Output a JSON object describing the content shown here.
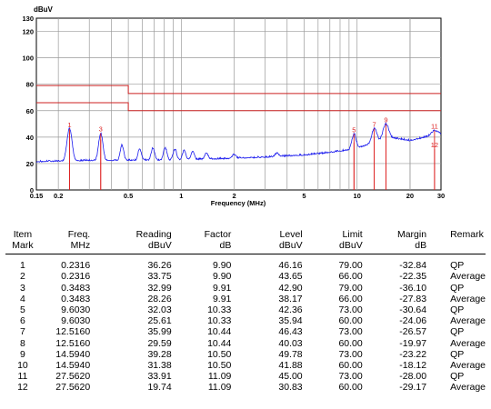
{
  "chart_data": {
    "type": "line",
    "yunit": "dBuV",
    "xlabel": "Frequency (MHz)",
    "xscale": "log",
    "xlim": [
      0.15,
      30
    ],
    "ylim": [
      0,
      130
    ],
    "yticks": [
      0,
      20,
      40,
      60,
      80,
      100,
      120,
      130
    ],
    "xticks": [
      {
        "v": 0.15,
        "label": "0.15"
      },
      {
        "v": 0.2,
        "label": "0.2"
      },
      {
        "v": 0.5,
        "label": "0.5"
      },
      {
        "v": 1,
        "label": "1"
      },
      {
        "v": 2,
        "label": "2"
      },
      {
        "v": 5,
        "label": "5"
      },
      {
        "v": 10,
        "label": "10"
      },
      {
        "v": 20,
        "label": "20"
      },
      {
        "v": 30,
        "label": "30"
      }
    ],
    "grid": true,
    "limit_lines": [
      {
        "points": [
          [
            0.15,
            79
          ],
          [
            0.5,
            79
          ],
          [
            0.5,
            73
          ],
          [
            30,
            73
          ]
        ],
        "color": "#cc2222"
      },
      {
        "points": [
          [
            0.15,
            66
          ],
          [
            0.5,
            66
          ],
          [
            0.5,
            60
          ],
          [
            30,
            60
          ]
        ],
        "color": "#cc2222"
      }
    ],
    "trace_color": "#1a1aee",
    "marker_color": "#dd2222",
    "markers": [
      {
        "label": "1",
        "x": 0.2316,
        "y": 46.16
      },
      {
        "label": "2",
        "x": 0.2316,
        "y": 43.65
      },
      {
        "label": "3",
        "x": 0.3483,
        "y": 42.9
      },
      {
        "label": "4",
        "x": 0.3483,
        "y": 38.17
      },
      {
        "label": "5",
        "x": 9.603,
        "y": 42.36
      },
      {
        "label": "6",
        "x": 9.603,
        "y": 35.94
      },
      {
        "label": "7",
        "x": 12.516,
        "y": 46.43
      },
      {
        "label": "8",
        "x": 12.516,
        "y": 40.03
      },
      {
        "label": "9",
        "x": 14.594,
        "y": 49.78
      },
      {
        "label": "10",
        "x": 14.594,
        "y": 41.88
      },
      {
        "label": "11",
        "x": 27.562,
        "y": 45.0
      },
      {
        "label": "12",
        "x": 27.562,
        "y": 30.83
      }
    ],
    "visible_marker_labels": [
      {
        "label": "1",
        "x": 0.2316,
        "y": 46.16
      },
      {
        "label": "3",
        "x": 0.3483,
        "y": 42.9
      },
      {
        "label": "5",
        "x": 9.603,
        "y": 42.36
      },
      {
        "label": "7",
        "x": 12.516,
        "y": 46.43
      },
      {
        "label": "9",
        "x": 14.594,
        "y": 49.78
      },
      {
        "label": "11",
        "x": 27.562,
        "y": 45.0
      },
      {
        "label": "12",
        "x": 27.562,
        "y": 30.83
      }
    ],
    "spectrum": {
      "baseline": [
        [
          0.15,
          21
        ],
        [
          0.2,
          21.5
        ],
        [
          0.3,
          22
        ],
        [
          0.5,
          22
        ],
        [
          1.0,
          22.5
        ],
        [
          2.0,
          23.5
        ],
        [
          3.0,
          24.5
        ],
        [
          5.0,
          26
        ],
        [
          7.0,
          28
        ],
        [
          9.0,
          30
        ],
        [
          11.0,
          33
        ],
        [
          13.0,
          37
        ],
        [
          16.0,
          39
        ],
        [
          20.0,
          37
        ],
        [
          25.0,
          40
        ],
        [
          30.0,
          42
        ]
      ],
      "peaks": [
        [
          0.2316,
          46.5,
          0.035
        ],
        [
          0.3483,
          43,
          0.03
        ],
        [
          0.46,
          34,
          0.025
        ],
        [
          0.58,
          31,
          0.025
        ],
        [
          0.69,
          32,
          0.025
        ],
        [
          0.81,
          32,
          0.025
        ],
        [
          0.92,
          31,
          0.025
        ],
        [
          1.04,
          30,
          0.025
        ],
        [
          1.16,
          29,
          0.025
        ],
        [
          1.39,
          28,
          0.025
        ],
        [
          2.0,
          27,
          0.03
        ],
        [
          3.5,
          28,
          0.03
        ],
        [
          9.603,
          42.5,
          0.03
        ],
        [
          12.516,
          46.5,
          0.035
        ],
        [
          14.594,
          50,
          0.04
        ],
        [
          27.562,
          45,
          0.05
        ]
      ],
      "noise": 1.3
    }
  },
  "table": {
    "headers": [
      {
        "l1": "Item",
        "l2": "Mark"
      },
      {
        "l1": "Freq.",
        "l2": "MHz"
      },
      {
        "l1": "Reading",
        "l2": "dBuV"
      },
      {
        "l1": "Factor",
        "l2": "dB"
      },
      {
        "l1": "Level",
        "l2": "dBuV"
      },
      {
        "l1": "Limit",
        "l2": "dBuV"
      },
      {
        "l1": "Margin",
        "l2": "dB"
      },
      {
        "l1": "Remark",
        "l2": ""
      }
    ],
    "rows": [
      [
        "1",
        "0.2316",
        "36.26",
        "9.90",
        "46.16",
        "79.00",
        "-32.84",
        "QP"
      ],
      [
        "2",
        "0.2316",
        "33.75",
        "9.90",
        "43.65",
        "66.00",
        "-22.35",
        "Average"
      ],
      [
        "3",
        "0.3483",
        "32.99",
        "9.91",
        "42.90",
        "79.00",
        "-36.10",
        "QP"
      ],
      [
        "4",
        "0.3483",
        "28.26",
        "9.91",
        "38.17",
        "66.00",
        "-27.83",
        "Average"
      ],
      [
        "5",
        "9.6030",
        "32.03",
        "10.33",
        "42.36",
        "73.00",
        "-30.64",
        "QP"
      ],
      [
        "6",
        "9.6030",
        "25.61",
        "10.33",
        "35.94",
        "60.00",
        "-24.06",
        "Average"
      ],
      [
        "7",
        "12.5160",
        "35.99",
        "10.44",
        "46.43",
        "73.00",
        "-26.57",
        "QP"
      ],
      [
        "8",
        "12.5160",
        "29.59",
        "10.44",
        "40.03",
        "60.00",
        "-19.97",
        "Average"
      ],
      [
        "9",
        "14.5940",
        "39.28",
        "10.50",
        "49.78",
        "73.00",
        "-23.22",
        "QP"
      ],
      [
        "10",
        "14.5940",
        "31.38",
        "10.50",
        "41.88",
        "60.00",
        "-18.12",
        "Average"
      ],
      [
        "11",
        "27.5620",
        "33.91",
        "11.09",
        "45.00",
        "73.00",
        "-28.00",
        "QP"
      ],
      [
        "12",
        "27.5620",
        "19.74",
        "11.09",
        "30.83",
        "60.00",
        "-29.17",
        "Average"
      ]
    ]
  }
}
